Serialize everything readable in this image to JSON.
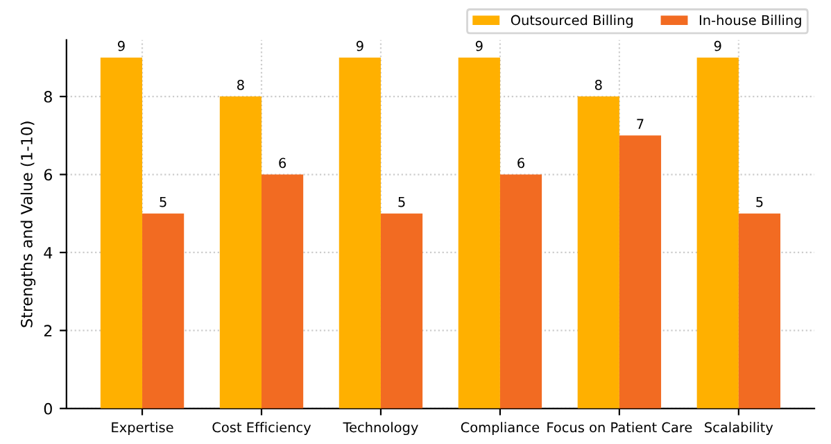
{
  "chart_data": {
    "type": "bar",
    "ylabel": "Strengths and Value (1-10)",
    "categories": [
      "Expertise",
      "Cost Efficiency",
      "Technology",
      "Compliance",
      "Focus on Patient Care",
      "Scalability"
    ],
    "series": [
      {
        "name": "Outsourced Billing",
        "color": "#ffb000",
        "values": [
          9,
          8,
          9,
          9,
          8,
          9
        ]
      },
      {
        "name": "In-house Billing",
        "color": "#f26b22",
        "values": [
          5,
          6,
          5,
          6,
          7,
          5
        ]
      }
    ],
    "ylim": [
      0,
      9.45
    ],
    "yticks": [
      0,
      2,
      4,
      6,
      8
    ],
    "grid": true,
    "legend": "top right",
    "data_labels": true
  }
}
